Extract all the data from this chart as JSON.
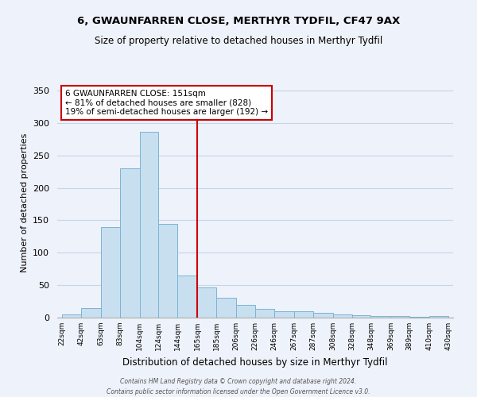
{
  "title": "6, GWAUNFARREN CLOSE, MERTHYR TYDFIL, CF47 9AX",
  "subtitle": "Size of property relative to detached houses in Merthyr Tydfil",
  "xlabel": "Distribution of detached houses by size in Merthyr Tydfil",
  "ylabel": "Number of detached properties",
  "bar_color": "#c8dff0",
  "bar_edge_color": "#7ab4d4",
  "vline_color": "#cc0000",
  "annotation_line1": "6 GWAUNFARREN CLOSE: 151sqm",
  "annotation_line2": "← 81% of detached houses are smaller (828)",
  "annotation_line3": "19% of semi-detached houses are larger (192) →",
  "bins": [
    22,
    42,
    63,
    83,
    104,
    124,
    144,
    165,
    185,
    206,
    226,
    246,
    267,
    287,
    308,
    328,
    348,
    369,
    389,
    410,
    430
  ],
  "heights": [
    5,
    15,
    140,
    230,
    287,
    145,
    65,
    46,
    31,
    20,
    14,
    10,
    10,
    7,
    5,
    4,
    3,
    2,
    1,
    2
  ],
  "tick_labels": [
    "22sqm",
    "42sqm",
    "63sqm",
    "83sqm",
    "104sqm",
    "124sqm",
    "144sqm",
    "165sqm",
    "185sqm",
    "206sqm",
    "226sqm",
    "246sqm",
    "267sqm",
    "287sqm",
    "308sqm",
    "328sqm",
    "348sqm",
    "369sqm",
    "389sqm",
    "410sqm",
    "430sqm"
  ],
  "ylim": [
    0,
    355
  ],
  "yticks": [
    0,
    50,
    100,
    150,
    200,
    250,
    300,
    350
  ],
  "footnote1": "Contains HM Land Registry data © Crown copyright and database right 2024.",
  "footnote2": "Contains public sector information licensed under the Open Government Licence v3.0.",
  "background_color": "#eef2fa",
  "grid_color": "#c8d4e8",
  "title_fontsize": 9.5,
  "subtitle_fontsize": 8.5,
  "ylabel_fontsize": 8,
  "xlabel_fontsize": 8.5,
  "tick_fontsize": 6.5,
  "annot_fontsize": 7.5,
  "footnote_fontsize": 5.5
}
